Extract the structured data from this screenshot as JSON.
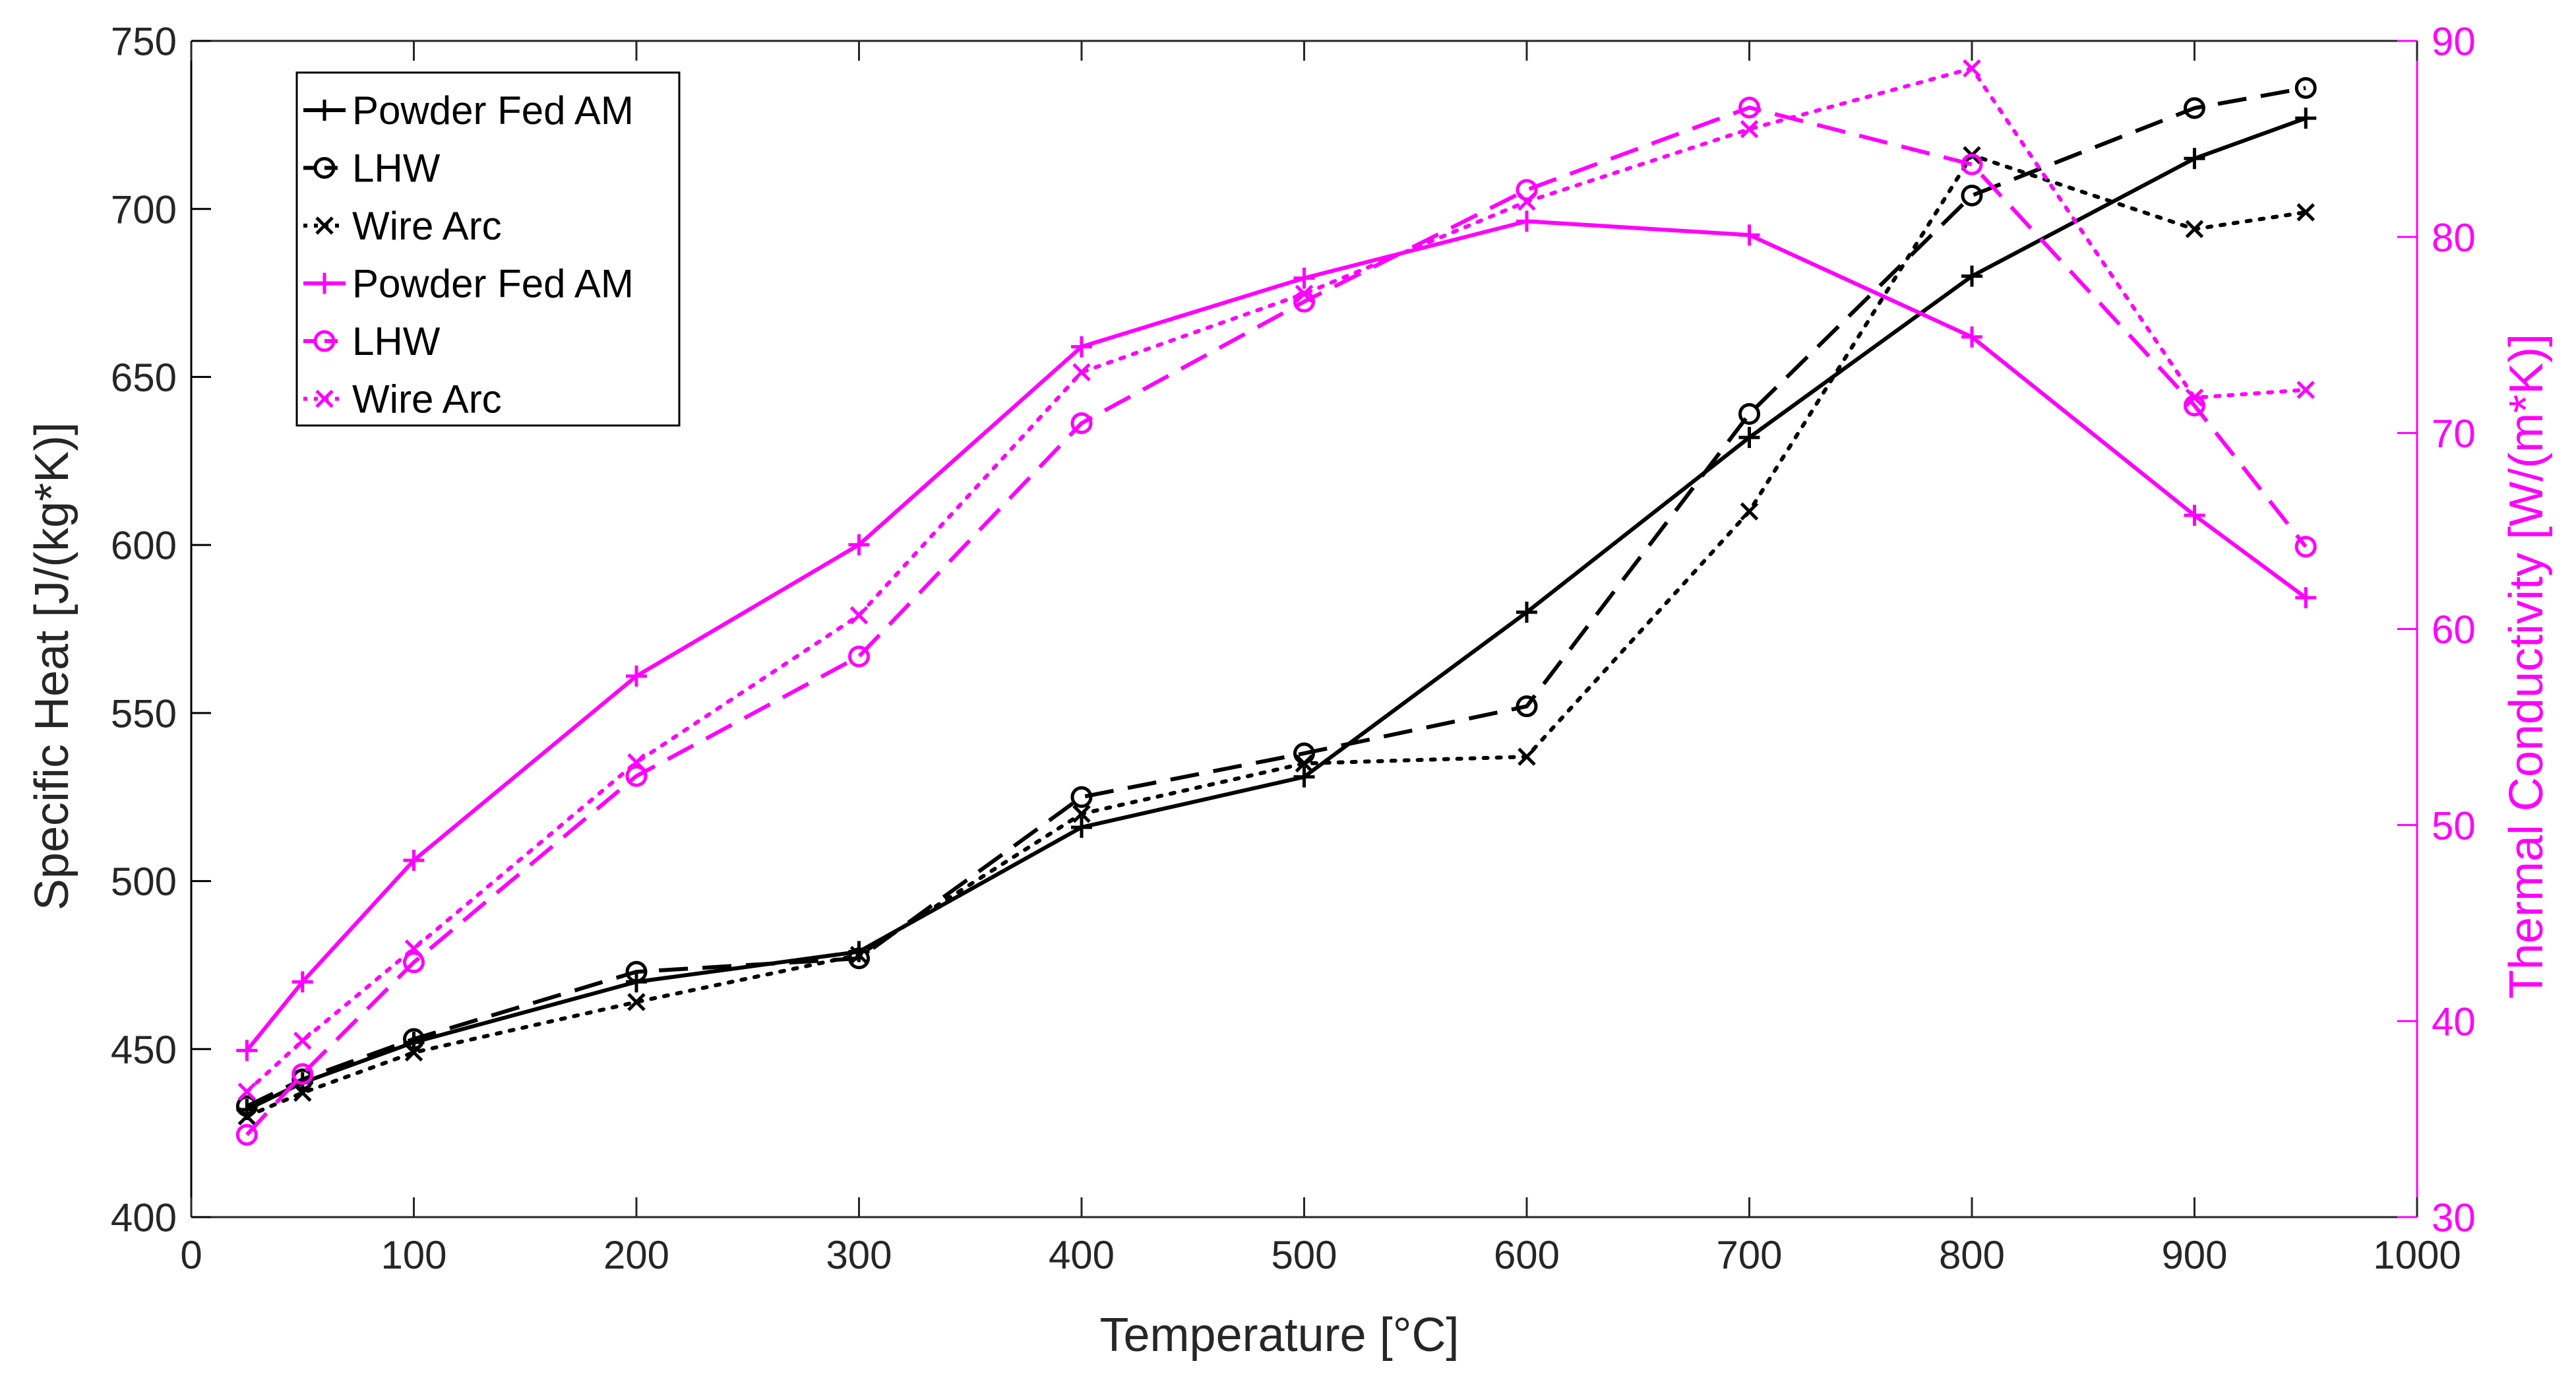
{
  "chart_data": {
    "type": "line",
    "title": "",
    "xlabel": "Temperature [°C]",
    "ylabel_left": "Specific Heat [J/(kg*K)]",
    "ylabel_right": "Thermal Conductivity [W/(m*K)]",
    "xlim": [
      0,
      1000
    ],
    "ylim_left": [
      400,
      750
    ],
    "ylim_right": [
      30,
      90
    ],
    "xticks": [
      "0",
      "100",
      "200",
      "300",
      "400",
      "500",
      "600",
      "700",
      "800",
      "900",
      "1000"
    ],
    "yticks_left": [
      "400",
      "450",
      "500",
      "550",
      "600",
      "650",
      "700",
      "750"
    ],
    "yticks_right": [
      "30",
      "40",
      "50",
      "60",
      "70",
      "80",
      "90"
    ],
    "grid": false,
    "legend_position": "top-left",
    "colors": {
      "left_axis": "#000000",
      "right_axis": "#ff00ff"
    },
    "series": [
      {
        "name": "Powder Fed AM",
        "axis": "left",
        "color": "#000000",
        "line": "solid",
        "marker": "plus",
        "x": [
          25,
          50,
          100,
          200,
          300,
          400,
          500,
          600,
          700,
          800,
          900,
          950
        ],
        "values": [
          432,
          440,
          452,
          470,
          479,
          516,
          531,
          580,
          632,
          680,
          715,
          727
        ]
      },
      {
        "name": "LHW",
        "axis": "left",
        "color": "#000000",
        "line": "dashed",
        "marker": "circle",
        "x": [
          25,
          50,
          100,
          200,
          300,
          400,
          500,
          600,
          700,
          800,
          900,
          950
        ],
        "values": [
          433,
          441,
          453,
          473,
          477,
          525,
          538,
          552,
          639,
          704,
          730,
          736
        ]
      },
      {
        "name": "Wire Arc",
        "axis": "left",
        "color": "#000000",
        "line": "dotted",
        "marker": "x",
        "x": [
          25,
          50,
          100,
          200,
          300,
          400,
          500,
          600,
          700,
          800,
          900,
          950
        ],
        "values": [
          430,
          437,
          449,
          464,
          478,
          520,
          535,
          537,
          610,
          716,
          694,
          699
        ]
      },
      {
        "name": "Powder Fed AM",
        "axis": "right",
        "color": "#ff00ff",
        "line": "solid",
        "marker": "plus",
        "x": [
          25,
          50,
          100,
          200,
          300,
          400,
          500,
          600,
          700,
          800,
          900,
          950
        ],
        "values": [
          38.5,
          42,
          48.2,
          57.6,
          64.3,
          74.4,
          77.9,
          80.8,
          80.1,
          74.9,
          65.8,
          61.6
        ]
      },
      {
        "name": "LHW",
        "axis": "right",
        "color": "#ff00ff",
        "line": "dashed",
        "marker": "circle",
        "x": [
          25,
          50,
          100,
          200,
          300,
          400,
          500,
          600,
          700,
          800,
          900,
          950
        ],
        "values": [
          34.2,
          37.3,
          43,
          52.5,
          58.6,
          70.5,
          76.7,
          82.4,
          86.6,
          83.7,
          71.4,
          64.2
        ]
      },
      {
        "name": "Wire Arc",
        "axis": "right",
        "color": "#ff00ff",
        "line": "dotted",
        "marker": "x",
        "x": [
          25,
          50,
          100,
          200,
          300,
          400,
          500,
          600,
          700,
          800,
          900,
          950
        ],
        "values": [
          36.4,
          39,
          43.7,
          53.2,
          60.7,
          73.1,
          77.1,
          81.8,
          85.5,
          88.6,
          71.8,
          72.2
        ]
      }
    ]
  }
}
